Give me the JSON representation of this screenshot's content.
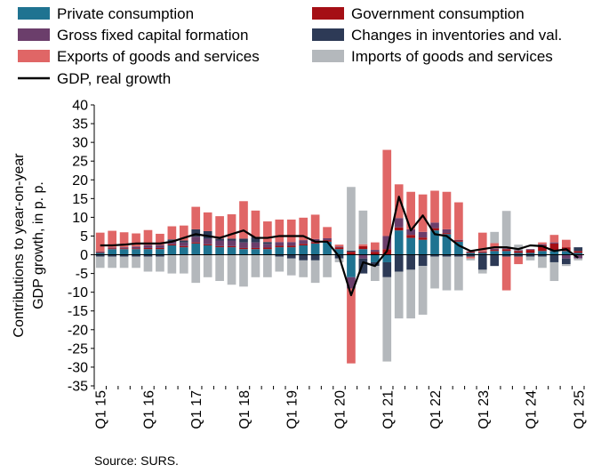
{
  "chart_data": {
    "type": "bar",
    "stacked": true,
    "ylabel": "Contributions to year-on-year GDP growth, in p. p.",
    "ylim": [
      -35,
      40
    ],
    "yticks": [
      -35,
      -30,
      -25,
      -20,
      -15,
      -10,
      -5,
      0,
      5,
      10,
      15,
      20,
      25,
      30,
      35,
      40
    ],
    "grid": false,
    "legend_position": "top",
    "xtick_labels": [
      "Q1 15",
      "Q1 16",
      "Q1 17",
      "Q1 18",
      "Q1 19",
      "Q1 20",
      "Q1 21",
      "Q1 22",
      "Q1 23",
      "Q1 24",
      "Q1 25"
    ],
    "xtick_indices": [
      0,
      4,
      8,
      12,
      16,
      20,
      24,
      28,
      32,
      36,
      40
    ],
    "categories": [
      "2015Q1",
      "2015Q2",
      "2015Q3",
      "2015Q4",
      "2016Q1",
      "2016Q2",
      "2016Q3",
      "2016Q4",
      "2017Q1",
      "2017Q2",
      "2017Q3",
      "2017Q4",
      "2018Q1",
      "2018Q2",
      "2018Q3",
      "2018Q4",
      "2019Q1",
      "2019Q2",
      "2019Q3",
      "2019Q4",
      "2020Q1",
      "2020Q2",
      "2020Q3",
      "2020Q4",
      "2021Q1",
      "2021Q2",
      "2021Q3",
      "2021Q4",
      "2022Q1",
      "2022Q2",
      "2022Q3",
      "2022Q4",
      "2023Q1",
      "2023Q2",
      "2023Q3",
      "2023Q4",
      "2024Q1",
      "2024Q2",
      "2024Q3",
      "2024Q4",
      "2025Q1"
    ],
    "series": [
      {
        "name": "Private consumption",
        "color": "#1f7391",
        "values": [
          0.5,
          1.5,
          1.5,
          1.5,
          1.5,
          1.5,
          2.5,
          2.0,
          3.0,
          2.5,
          2.0,
          2.0,
          1.5,
          1.5,
          1.5,
          2.0,
          2.0,
          2.5,
          3.0,
          3.5,
          1.5,
          -6.0,
          1.5,
          -2.0,
          -2.0,
          6.5,
          4.5,
          4.0,
          6.5,
          5.5,
          3.5,
          0.5,
          0.5,
          1.0,
          1.0,
          0.5,
          0.5,
          1.0,
          1.0,
          1.0,
          0.5
        ]
      },
      {
        "name": "Government consumption",
        "color": "#a50f15",
        "values": [
          0.2,
          0.2,
          0.2,
          0.2,
          0.3,
          0.3,
          0.3,
          0.3,
          0.3,
          0.3,
          0.3,
          0.3,
          0.3,
          0.3,
          0.4,
          0.4,
          0.4,
          0.4,
          0.4,
          0.4,
          0.5,
          0.8,
          0.8,
          0.8,
          1.5,
          0.8,
          0.8,
          0.6,
          0.6,
          0.3,
          0.3,
          0.3,
          0.3,
          0.3,
          0.5,
          0.5,
          0.8,
          1.5,
          2.0,
          1.0,
          0.5
        ]
      },
      {
        "name": "Gross fixed capital formation",
        "color": "#6b3e6b",
        "values": [
          0.2,
          0.2,
          0.3,
          0.5,
          0.8,
          0.8,
          0.8,
          1.0,
          1.5,
          1.5,
          1.5,
          1.5,
          1.5,
          1.5,
          1.0,
          1.0,
          1.0,
          1.0,
          0.8,
          0.5,
          0.2,
          -3.0,
          -1.0,
          0.5,
          3.5,
          2.5,
          1.5,
          1.5,
          1.5,
          1.0,
          0.2,
          0.1,
          0.1,
          0.3,
          0.2,
          0.2,
          0.2,
          0.3,
          0.3,
          -1.0,
          -1.0
        ]
      },
      {
        "name": "Changes in inventories and val.",
        "color": "#2d3a56",
        "values": [
          -0.5,
          -0.5,
          -0.5,
          -0.5,
          -0.5,
          -0.5,
          0.5,
          0.5,
          2.0,
          2.0,
          0.5,
          0.5,
          1.0,
          1.5,
          0.5,
          -0.5,
          -1.0,
          -1.5,
          -1.5,
          0.0,
          -1.0,
          0.3,
          -4.0,
          -1.0,
          -4.0,
          -4.5,
          -4.0,
          -3.0,
          -0.5,
          -0.5,
          -0.5,
          -0.5,
          -4.0,
          -3.0,
          -0.5,
          -0.5,
          -0.5,
          -0.5,
          -2.0,
          -1.5,
          1.0
        ]
      },
      {
        "name": "Exports of goods and services",
        "color": "#e06666",
        "values": [
          5.0,
          4.5,
          4.0,
          3.5,
          4.0,
          3.0,
          3.5,
          4.0,
          6.0,
          5.0,
          6.0,
          6.5,
          10.0,
          7.0,
          5.5,
          6.0,
          6.0,
          6.0,
          6.5,
          3.0,
          0.5,
          -20.0,
          0.5,
          2.0,
          23.0,
          9.0,
          10.0,
          10.0,
          8.5,
          10.0,
          10.0,
          -0.5,
          5.0,
          1.5,
          -9.0,
          -2.0,
          0.0,
          0.5,
          2.0,
          2.0,
          0.0
        ]
      },
      {
        "name": "Imports of goods and services",
        "color": "#b4b8bc",
        "values": [
          -3.0,
          -3.0,
          -3.0,
          -3.0,
          -4.0,
          -4.0,
          -5.0,
          -5.0,
          -7.5,
          -6.0,
          -7.0,
          -8.0,
          -8.5,
          -6.0,
          -6.0,
          -4.0,
          -4.5,
          -4.5,
          -6.0,
          -6.0,
          -1.0,
          17.0,
          9.0,
          -4.0,
          -22.5,
          -12.5,
          -13.0,
          -13.0,
          -8.5,
          -9.0,
          -9.0,
          -0.5,
          -1.0,
          3.0,
          10.0,
          1.5,
          -1.0,
          -3.0,
          -5.0,
          -0.5,
          -0.5
        ]
      }
    ],
    "line": {
      "name": "GDP, real growth",
      "color": "#000000",
      "values": [
        2.5,
        2.5,
        2.7,
        3.0,
        3.0,
        3.0,
        3.5,
        4.5,
        5.5,
        5.0,
        4.5,
        5.5,
        6.5,
        4.5,
        4.5,
        5.0,
        5.0,
        5.0,
        3.5,
        3.5,
        -0.5,
        -10.8,
        -2.0,
        -3.0,
        1.0,
        15.5,
        6.5,
        10.5,
        5.5,
        5.0,
        2.5,
        1.0,
        1.5,
        2.0,
        2.0,
        1.5,
        2.5,
        2.3,
        1.0,
        1.5,
        -0.8
      ]
    }
  },
  "source": "Source: SURS."
}
